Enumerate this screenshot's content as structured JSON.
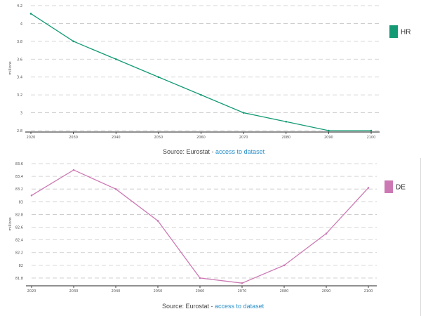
{
  "chart_data": [
    {
      "type": "line",
      "ylabel": "millions",
      "x": [
        2020,
        2030,
        2040,
        2050,
        2060,
        2070,
        2080,
        2090,
        2100
      ],
      "ylim": [
        2.8,
        4.2
      ],
      "yticks": [
        2.8,
        3,
        3.2,
        3.4,
        3.6,
        3.8,
        4,
        4.2
      ],
      "ytick_labels": [
        "2.8",
        "3",
        "3.2",
        "3.4",
        "3.6",
        "3.8",
        "4",
        "4.2"
      ],
      "series": [
        {
          "name": "HR",
          "color": "#139a75",
          "values": [
            4.11,
            3.8,
            3.6,
            3.4,
            3.2,
            3.0,
            2.9,
            2.8,
            2.8
          ]
        }
      ],
      "grid": true,
      "legend": "top-right",
      "source_prefix": "Source: Eurostat - ",
      "source_link": "access to dataset"
    },
    {
      "type": "line",
      "ylabel": "millions",
      "x": [
        2020,
        2030,
        2040,
        2050,
        2060,
        2070,
        2080,
        2090,
        2100
      ],
      "ylim": [
        81.7,
        83.6
      ],
      "yticks": [
        81.8,
        82,
        82.2,
        82.4,
        82.6,
        82.8,
        83,
        83.2,
        83.4,
        83.6
      ],
      "ytick_labels": [
        "81.8",
        "82",
        "82.2",
        "82.4",
        "82.6",
        "82.8",
        "83",
        "83.2",
        "83.4",
        "83.6"
      ],
      "series": [
        {
          "name": "DE",
          "color": "#cc79b3",
          "values": [
            83.1,
            83.5,
            83.2,
            82.7,
            81.8,
            81.72,
            82.0,
            82.5,
            83.22
          ]
        }
      ],
      "grid": true,
      "legend": "top-right",
      "source_prefix": "Source: Eurostat - ",
      "source_link": "access to dataset"
    }
  ]
}
